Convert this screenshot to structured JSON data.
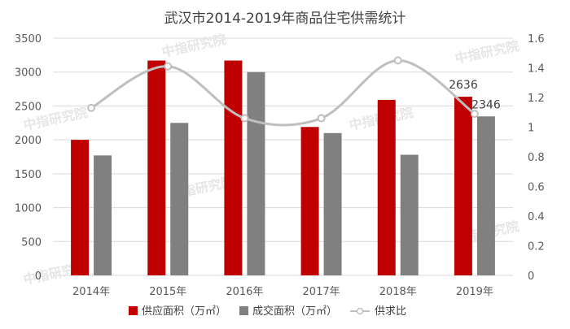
{
  "chart_data": {
    "type": "bar",
    "title": "武汉市2014-2019年商品住宅供需统计",
    "categories": [
      "2014年",
      "2015年",
      "2016年",
      "2017年",
      "2018年",
      "2019年"
    ],
    "series": [
      {
        "name": "供应面积（万㎡）",
        "type": "bar",
        "axis": "left",
        "color": "#C00000",
        "values": [
          2000,
          3170,
          3170,
          2190,
          2590,
          2636
        ]
      },
      {
        "name": "成交面积（万㎡）",
        "type": "bar",
        "axis": "left",
        "color": "#808080",
        "values": [
          1770,
          2250,
          3000,
          2100,
          1780,
          2346
        ]
      },
      {
        "name": "供求比",
        "type": "line",
        "axis": "right",
        "color": "#BFBFBF",
        "values": [
          1.13,
          1.41,
          1.06,
          1.06,
          1.45,
          1.09
        ]
      }
    ],
    "data_labels": {
      "2019年": {
        "供应面积（万㎡）": "2636",
        "成交面积（万㎡）": "2346"
      }
    },
    "y_left": {
      "lim": [
        0,
        3500
      ],
      "ticks": [
        "0",
        "500",
        "1000",
        "1500",
        "2000",
        "2500",
        "3000",
        "3500"
      ]
    },
    "y_right": {
      "lim": [
        0,
        1.6
      ],
      "ticks": [
        "0",
        "0.2",
        "0.4",
        "0.6",
        "0.8",
        "1",
        "1.2",
        "1.4",
        "1.6"
      ]
    },
    "grid": true,
    "legend_position": "bottom",
    "watermark": "中指研究院"
  }
}
